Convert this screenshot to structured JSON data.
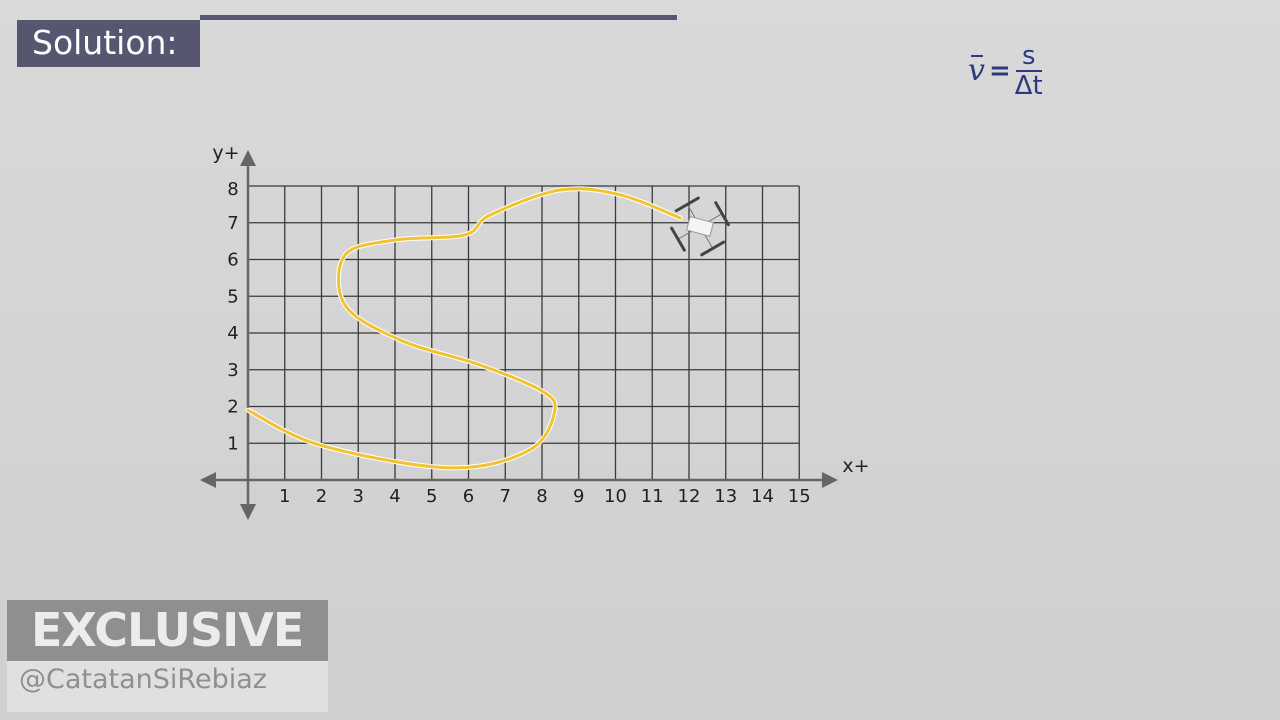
{
  "header": {
    "title": "Solution:"
  },
  "formula": {
    "lhs": "v",
    "equals": "=",
    "numerator": "s",
    "denominator": "Δt"
  },
  "colors": {
    "header": "#575670",
    "formula": "#2d3b7a",
    "path": "#f2c230",
    "grid": "#3a3a3a"
  },
  "chart_data": {
    "type": "line",
    "xlabel": "x+",
    "ylabel": "y+",
    "x_ticks": [
      "1",
      "2",
      "3",
      "4",
      "5",
      "6",
      "7",
      "8",
      "9",
      "10",
      "11",
      "12",
      "13",
      "14",
      "15"
    ],
    "y_ticks": [
      "1",
      "2",
      "3",
      "4",
      "5",
      "6",
      "7",
      "8"
    ],
    "xlim": [
      0,
      15
    ],
    "ylim": [
      0,
      8
    ],
    "grid": true,
    "path": [
      [
        0,
        1.9
      ],
      [
        1.96,
        0.95
      ],
      [
        5.5,
        0.33
      ],
      [
        7.67,
        0.82
      ],
      [
        8.35,
        1.9
      ],
      [
        7.95,
        2.45
      ],
      [
        6.31,
        3.13
      ],
      [
        4.14,
        3.81
      ],
      [
        2.64,
        4.76
      ],
      [
        2.64,
        6.12
      ],
      [
        4,
        6.53
      ],
      [
        5.9,
        6.67
      ],
      [
        6.59,
        7.21
      ],
      [
        8.49,
        7.89
      ],
      [
        10.12,
        7.76
      ],
      [
        11.76,
        7.13
      ]
    ],
    "drone_position": [
      12.3,
      6.9
    ],
    "drone_icon": "quadcopter-drone-icon"
  },
  "watermark": {
    "top": "EXCLUSIVE",
    "bottom": "@CatatanSiRebiaz"
  }
}
